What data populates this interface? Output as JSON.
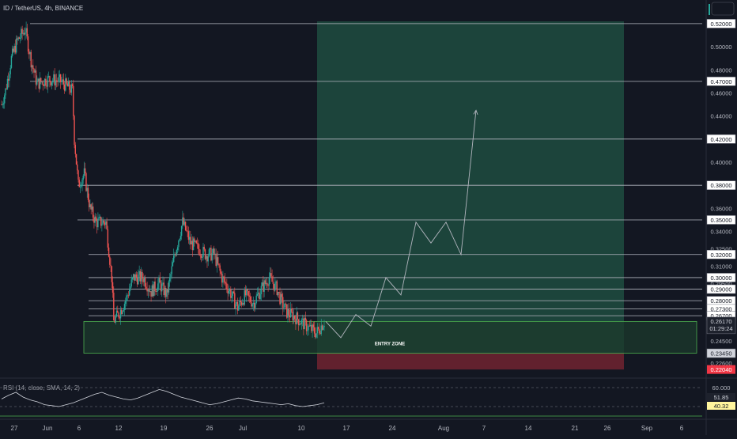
{
  "header": {
    "title": "ID / TetherUS, 4h, BINANCE"
  },
  "colors": {
    "background": "#131722",
    "candle_up": "#26a69a",
    "candle_down": "#ef5350",
    "profit_zone": "#1f4c40",
    "loss_zone": "#6b2230",
    "entry_zone_fill": "#1c3a2c",
    "entry_zone_border": "#4caf50",
    "level_line": "#b2b5be",
    "projection": "#b2b5be",
    "rsi_line": "#d1d4dc"
  },
  "chart_data": [
    {
      "type": "candlestick",
      "title": "ID / TetherUS, 4h, BINANCE",
      "ylim": [
        0.215,
        0.535
      ],
      "y_ticks": [
        "0.50000",
        "0.48000",
        "0.46000",
        "0.44000",
        "0.40000",
        "0.36000",
        "0.34000",
        "0.32500",
        "0.31000",
        "0.29500",
        "0.24500",
        "0.22600"
      ],
      "x_ticks": [
        "27",
        "Jun",
        "6",
        "12",
        "19",
        "26",
        "Jul",
        "10",
        "17",
        "24",
        "Aug",
        "7",
        "14",
        "21",
        "26",
        "Sep",
        "6"
      ],
      "price_waypoints": [
        {
          "t": 0,
          "p": 0.45
        },
        {
          "t": 2,
          "p": 0.462
        },
        {
          "t": 5,
          "p": 0.49
        },
        {
          "t": 8,
          "p": 0.505
        },
        {
          "t": 12,
          "p": 0.515
        },
        {
          "t": 15,
          "p": 0.488
        },
        {
          "t": 18,
          "p": 0.468
        },
        {
          "t": 24,
          "p": 0.472
        },
        {
          "t": 30,
          "p": 0.47
        },
        {
          "t": 36,
          "p": 0.462
        },
        {
          "t": 37,
          "p": 0.42
        },
        {
          "t": 39,
          "p": 0.38
        },
        {
          "t": 42,
          "p": 0.39
        },
        {
          "t": 45,
          "p": 0.36
        },
        {
          "t": 48,
          "p": 0.348
        },
        {
          "t": 53,
          "p": 0.348
        },
        {
          "t": 56,
          "p": 0.3
        },
        {
          "t": 57,
          "p": 0.262
        },
        {
          "t": 60,
          "p": 0.27
        },
        {
          "t": 63,
          "p": 0.28
        },
        {
          "t": 67,
          "p": 0.3
        },
        {
          "t": 72,
          "p": 0.3
        },
        {
          "t": 76,
          "p": 0.288
        },
        {
          "t": 80,
          "p": 0.295
        },
        {
          "t": 84,
          "p": 0.285
        },
        {
          "t": 88,
          "p": 0.32
        },
        {
          "t": 92,
          "p": 0.348
        },
        {
          "t": 96,
          "p": 0.33
        },
        {
          "t": 100,
          "p": 0.325
        },
        {
          "t": 104,
          "p": 0.32
        },
        {
          "t": 108,
          "p": 0.32
        },
        {
          "t": 112,
          "p": 0.3
        },
        {
          "t": 116,
          "p": 0.288
        },
        {
          "t": 120,
          "p": 0.274
        },
        {
          "t": 124,
          "p": 0.285
        },
        {
          "t": 128,
          "p": 0.278
        },
        {
          "t": 132,
          "p": 0.29
        },
        {
          "t": 136,
          "p": 0.3
        },
        {
          "t": 140,
          "p": 0.29
        },
        {
          "t": 142,
          "p": 0.28
        },
        {
          "t": 145,
          "p": 0.27
        },
        {
          "t": 150,
          "p": 0.265
        },
        {
          "t": 155,
          "p": 0.258
        },
        {
          "t": 160,
          "p": 0.252
        },
        {
          "t": 164,
          "p": 0.262
        }
      ],
      "horizontal_levels": [
        {
          "value": 0.52,
          "label": "0.52000"
        },
        {
          "value": 0.47,
          "label": "0.47000"
        },
        {
          "value": 0.42,
          "label": "0.42000"
        },
        {
          "value": 0.38,
          "label": "0.38000"
        },
        {
          "value": 0.35,
          "label": "0.35000"
        },
        {
          "value": 0.32,
          "label": "0.32000"
        },
        {
          "value": 0.3,
          "label": "0.30000"
        },
        {
          "value": 0.29,
          "label": "0.29000"
        },
        {
          "value": 0.28,
          "label": "0.28000"
        },
        {
          "value": 0.273,
          "label": "0.27300"
        },
        {
          "value": 0.267,
          "label": "0.26700"
        }
      ],
      "current_price": {
        "value": 0.2617,
        "label": "0.26170",
        "countdown": "01:29:24"
      },
      "entry_zone": {
        "label": "ENTRY ZONE",
        "top": 0.262,
        "bottom": 0.2345,
        "bottom_label": "0.23450"
      },
      "position": {
        "target": 0.522,
        "entry": 0.2345,
        "stop": 0.2204,
        "stop_label": "0.22040"
      },
      "projection_path": [
        0.262,
        0.248,
        0.268,
        0.258,
        0.3,
        0.285,
        0.348,
        0.33,
        0.348,
        0.32,
        0.445
      ]
    },
    {
      "type": "line",
      "title": "RSI (14, close, SMA, 14, 2)",
      "ylim": [
        35,
        70
      ],
      "levels": [
        {
          "value": 60,
          "label": "60.000"
        }
      ],
      "series": [
        {
          "values": [
            48,
            52,
            55,
            50,
            47,
            45,
            42,
            41,
            40,
            42,
            44,
            47,
            50,
            53,
            55,
            52,
            50,
            48,
            47,
            49,
            52,
            55,
            58,
            56,
            53,
            50,
            48,
            46,
            44,
            42,
            43,
            45,
            47,
            49,
            48,
            46,
            45,
            44,
            43,
            42,
            43,
            41,
            40,
            41,
            42,
            44
          ]
        }
      ],
      "current_value": {
        "label": "51.85"
      },
      "signal_value": {
        "label": "40.32"
      }
    }
  ]
}
